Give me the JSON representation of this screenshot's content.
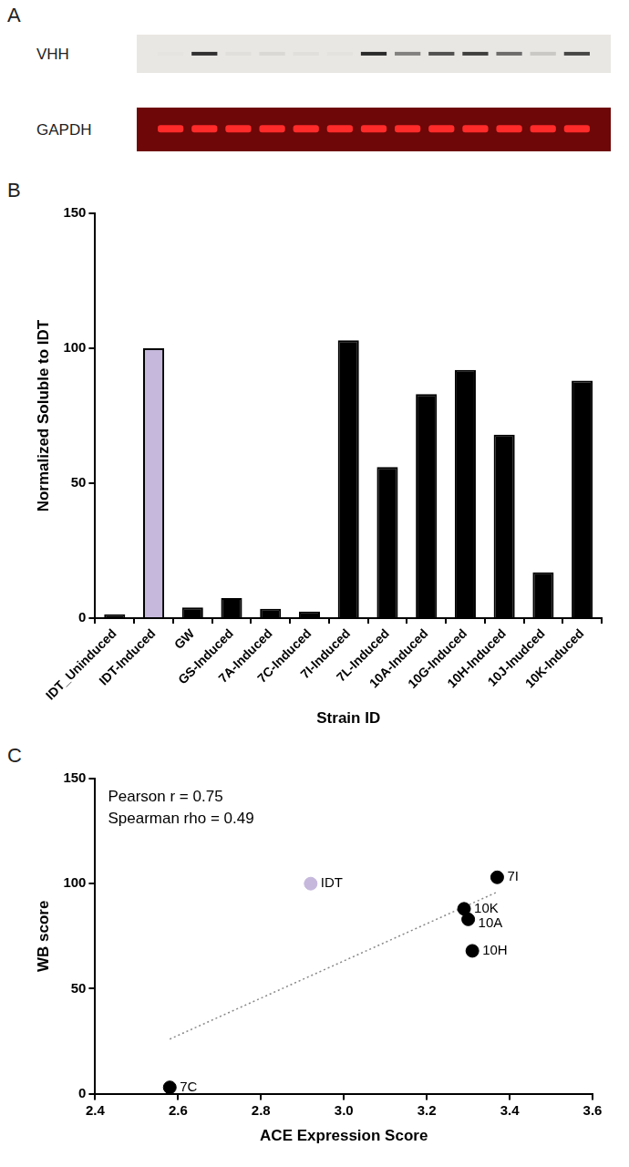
{
  "blot": {
    "panel_label": "A",
    "rows": [
      "VHH",
      "GAPDH"
    ]
  },
  "chart_data": [
    {
      "panel_label": "B",
      "type": "bar",
      "categories": [
        "IDT_Uninduced",
        "IDT-Induced",
        "GW",
        "GS-Induced",
        "7A-Induced",
        "7C-Induced",
        "7I-Induced",
        "7L-Induced",
        "10A-Induced",
        "10G-Induced",
        "10H-Induced",
        "10J-Inudced",
        "10K-Induced"
      ],
      "values": [
        1.5,
        100,
        4,
        7.5,
        3.5,
        2.5,
        103,
        56,
        83,
        92,
        68,
        17,
        88
      ],
      "colors": [
        "#000000",
        "#c5b8dc",
        "#000000",
        "#000000",
        "#000000",
        "#000000",
        "#000000",
        "#000000",
        "#000000",
        "#000000",
        "#000000",
        "#000000",
        "#000000"
      ],
      "x_label": "Strain ID",
      "y_label": "Normalized Soluble to IDT",
      "ylim": [
        0,
        150
      ],
      "yticks": [
        0,
        50,
        100,
        150
      ],
      "grid": false
    },
    {
      "panel_label": "C",
      "type": "scatter",
      "x": [
        2.92,
        3.37,
        3.29,
        3.3,
        3.31,
        2.58
      ],
      "values": [
        100,
        103,
        88,
        83,
        68,
        3
      ],
      "point_labels": [
        "IDT",
        "7I",
        "10K",
        "10A",
        "10H",
        "7C"
      ],
      "colors": [
        "#c5b8dc",
        "#000000",
        "#000000",
        "#000000",
        "#000000",
        "#000000"
      ],
      "marker": "circle",
      "fit_line": {
        "x": [
          2.58,
          3.37
        ],
        "values": [
          26,
          96
        ],
        "line_style": "dotted",
        "color": "#888888"
      },
      "annotations": [
        "Pearson r = 0.75",
        "Spearman rho = 0.49"
      ],
      "x_label": "ACE Expression Score",
      "y_label": "WB score",
      "xlim": [
        2.4,
        3.6
      ],
      "xticks": [
        2.4,
        2.6,
        2.8,
        {
          "value": 3,
          "label": "3.0"
        },
        3.2,
        3.4,
        3.6
      ],
      "ylim": [
        0,
        150
      ],
      "yticks": [
        0,
        50,
        100,
        150
      ],
      "grid": false
    }
  ]
}
